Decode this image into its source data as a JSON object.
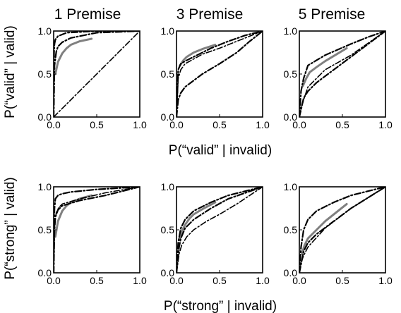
{
  "columns": [
    "1 Premise",
    "3 Premise",
    "5 Premise"
  ],
  "row_labels": {
    "top": {
      "xlabel": "P(“valid” | invalid)",
      "ylabel": "P(“valid” | valid)"
    },
    "bottom": {
      "xlabel": "P(“strong” | invalid)",
      "ylabel": "P(“strong” | valid)"
    }
  },
  "ticks": {
    "x": [
      "0.0",
      "0.5",
      "1.0"
    ],
    "y": [
      "0.0",
      "0.5",
      "1.0"
    ]
  },
  "colors": {
    "data": "#808080",
    "model": "#000000"
  },
  "chart_data": [
    {
      "type": "line",
      "row": "top",
      "column": "1 Premise",
      "xlim": [
        0,
        1
      ],
      "ylim": [
        0,
        1
      ],
      "series": [
        {
          "style": "data",
          "x": [
            0.02,
            0.05,
            0.1,
            0.15,
            0.2,
            0.3,
            0.44
          ],
          "y": [
            0.5,
            0.64,
            0.74,
            0.8,
            0.84,
            0.88,
            0.91
          ]
        },
        {
          "style": "model-a",
          "x": [
            0,
            0.005,
            0.01,
            0.02,
            0.05,
            0.1,
            0.15,
            0.5,
            1.0
          ],
          "y": [
            0,
            0.75,
            0.85,
            0.9,
            0.94,
            0.96,
            0.98,
            1.0,
            1.0
          ]
        },
        {
          "style": "model-b",
          "x": [
            0,
            0.01,
            0.03,
            0.05,
            0.1,
            0.2,
            0.5,
            1.0
          ],
          "y": [
            0,
            0.6,
            0.76,
            0.82,
            0.87,
            0.92,
            0.98,
            1.0
          ]
        },
        {
          "style": "model-c",
          "x": [
            0,
            1
          ],
          "y": [
            0,
            1
          ]
        }
      ]
    },
    {
      "type": "line",
      "row": "top",
      "column": "3 Premise",
      "xlim": [
        0,
        1
      ],
      "ylim": [
        0,
        1
      ],
      "series": [
        {
          "style": "data",
          "x": [
            0.04,
            0.08,
            0.12,
            0.2,
            0.3,
            0.45
          ],
          "y": [
            0.6,
            0.66,
            0.7,
            0.75,
            0.79,
            0.84
          ]
        },
        {
          "style": "model-a",
          "x": [
            0,
            0.02,
            0.05,
            0.1,
            0.2,
            0.4,
            0.6,
            0.8,
            1.0
          ],
          "y": [
            0,
            0.55,
            0.62,
            0.65,
            0.7,
            0.8,
            0.88,
            0.95,
            1.0
          ]
        },
        {
          "style": "model-b",
          "x": [
            0,
            0.02,
            0.05,
            0.1,
            0.3,
            0.5,
            0.7,
            0.85,
            1.0
          ],
          "y": [
            0,
            0.2,
            0.28,
            0.35,
            0.5,
            0.62,
            0.75,
            0.88,
            1.0
          ]
        },
        {
          "style": "model-c",
          "x": [
            0,
            0.02,
            0.05,
            0.1,
            0.3,
            0.5,
            0.7,
            1.0
          ],
          "y": [
            0,
            0.45,
            0.55,
            0.62,
            0.73,
            0.8,
            0.88,
            1.0
          ]
        }
      ]
    },
    {
      "type": "line",
      "row": "top",
      "column": "5 Premise",
      "xlim": [
        0,
        1
      ],
      "ylim": [
        0,
        1
      ],
      "series": [
        {
          "style": "data",
          "x": [
            0.04,
            0.08,
            0.12,
            0.2,
            0.3,
            0.45,
            0.55
          ],
          "y": [
            0.36,
            0.45,
            0.52,
            0.58,
            0.65,
            0.74,
            0.8
          ]
        },
        {
          "style": "model-a",
          "x": [
            0,
            0.02,
            0.05,
            0.1,
            0.3,
            0.6,
            0.8,
            1.0
          ],
          "y": [
            0,
            0.3,
            0.45,
            0.6,
            0.72,
            0.85,
            0.93,
            1.0
          ]
        },
        {
          "style": "model-b",
          "x": [
            0,
            0.05,
            0.1,
            0.2,
            0.4,
            0.6,
            0.8,
            1.0
          ],
          "y": [
            0,
            0.22,
            0.3,
            0.4,
            0.55,
            0.7,
            0.85,
            1.0
          ]
        },
        {
          "style": "model-c",
          "x": [
            0,
            0.02,
            0.05,
            0.1,
            0.3,
            0.6,
            0.8,
            1.0
          ],
          "y": [
            0,
            0.1,
            0.2,
            0.35,
            0.55,
            0.72,
            0.86,
            1.0
          ]
        }
      ]
    },
    {
      "type": "line",
      "row": "bottom",
      "column": "1 Premise",
      "xlim": [
        0,
        1
      ],
      "ylim": [
        0,
        1
      ],
      "series": [
        {
          "style": "data",
          "x": [
            0.02,
            0.05,
            0.1,
            0.15,
            0.2,
            0.3,
            0.44
          ],
          "y": [
            0.42,
            0.6,
            0.72,
            0.78,
            0.82,
            0.86,
            0.9
          ]
        },
        {
          "style": "model-a",
          "x": [
            0,
            0.005,
            0.01,
            0.02,
            0.05,
            0.1,
            0.2,
            0.5,
            1.0
          ],
          "y": [
            0,
            0.6,
            0.75,
            0.86,
            0.9,
            0.92,
            0.94,
            0.97,
            1.0
          ]
        },
        {
          "style": "model-b",
          "x": [
            0,
            0.01,
            0.02,
            0.05,
            0.1,
            0.3,
            0.6,
            1.0
          ],
          "y": [
            0,
            0.5,
            0.65,
            0.73,
            0.78,
            0.84,
            0.9,
            1.0
          ]
        },
        {
          "style": "model-c",
          "x": [
            0,
            0.01,
            0.03,
            0.06,
            0.1,
            0.3,
            0.6,
            1.0
          ],
          "y": [
            0,
            0.55,
            0.7,
            0.76,
            0.8,
            0.86,
            0.93,
            1.0
          ]
        }
      ]
    },
    {
      "type": "line",
      "row": "bottom",
      "column": "3 Premise",
      "xlim": [
        0,
        1
      ],
      "ylim": [
        0,
        1
      ],
      "series": [
        {
          "style": "data",
          "x": [
            0.03,
            0.06,
            0.1,
            0.15,
            0.2,
            0.3,
            0.45
          ],
          "y": [
            0.38,
            0.48,
            0.56,
            0.63,
            0.68,
            0.74,
            0.82
          ]
        },
        {
          "style": "model-a",
          "x": [
            0,
            0.02,
            0.05,
            0.1,
            0.2,
            0.4,
            0.6,
            1.0
          ],
          "y": [
            0,
            0.35,
            0.52,
            0.62,
            0.72,
            0.82,
            0.9,
            1.0
          ]
        },
        {
          "style": "model-b",
          "x": [
            0,
            0.03,
            0.05,
            0.1,
            0.2,
            0.4,
            0.6,
            1.0
          ],
          "y": [
            0,
            0.3,
            0.4,
            0.52,
            0.62,
            0.75,
            0.86,
            1.0
          ]
        },
        {
          "style": "model-c",
          "x": [
            0,
            0.03,
            0.06,
            0.12,
            0.2,
            0.35,
            0.5,
            0.7,
            1.0
          ],
          "y": [
            0,
            0.22,
            0.32,
            0.42,
            0.5,
            0.6,
            0.68,
            0.8,
            1.0
          ]
        }
      ]
    },
    {
      "type": "line",
      "row": "bottom",
      "column": "5 Premise",
      "xlim": [
        0,
        1
      ],
      "ylim": [
        0,
        1
      ],
      "series": [
        {
          "style": "data",
          "x": [
            0.03,
            0.06,
            0.1,
            0.2,
            0.3,
            0.45,
            0.55
          ],
          "y": [
            0.22,
            0.32,
            0.4,
            0.5,
            0.6,
            0.72,
            0.8
          ]
        },
        {
          "style": "model-a",
          "x": [
            0,
            0.02,
            0.05,
            0.1,
            0.2,
            0.4,
            0.6,
            1.0
          ],
          "y": [
            0,
            0.3,
            0.5,
            0.62,
            0.72,
            0.82,
            0.9,
            1.0
          ]
        },
        {
          "style": "model-b",
          "x": [
            0,
            0.05,
            0.1,
            0.2,
            0.4,
            0.6,
            1.0
          ],
          "y": [
            0,
            0.25,
            0.35,
            0.45,
            0.6,
            0.75,
            1.0
          ]
        },
        {
          "style": "model-c",
          "x": [
            0,
            0.02,
            0.05,
            0.1,
            0.3,
            0.6,
            1.0
          ],
          "y": [
            0,
            0.12,
            0.2,
            0.3,
            0.52,
            0.75,
            1.0
          ]
        }
      ]
    }
  ]
}
